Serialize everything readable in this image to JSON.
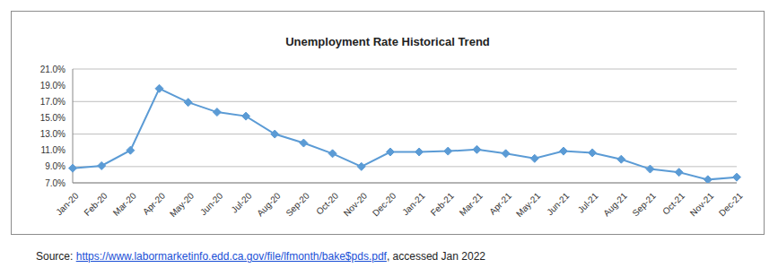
{
  "chart_data": {
    "type": "line",
    "title": "Unemployment Rate Historical Trend",
    "categories": [
      "Jan-20",
      "Feb-20",
      "Mar-20",
      "Apr-20",
      "May-20",
      "Jun-20",
      "Jul-20",
      "Aug-20",
      "Sep-20",
      "Oct-20",
      "Nov-20",
      "Dec-20",
      "Jan-21",
      "Feb-21",
      "Mar-21",
      "Apr-21",
      "May-21",
      "Jun-21",
      "Jul-21",
      "Aug-21",
      "Sep-21",
      "Oct-21",
      "Nov-21",
      "Dec-21"
    ],
    "values": [
      8.8,
      9.1,
      11.0,
      18.6,
      16.9,
      15.7,
      15.2,
      13.0,
      11.9,
      10.6,
      9.0,
      10.8,
      10.8,
      10.9,
      11.1,
      10.6,
      10.0,
      10.9,
      10.7,
      9.9,
      8.7,
      8.3,
      7.4,
      7.7
    ],
    "color": "#5b9bd5",
    "marker": "diamond",
    "ylim": [
      7,
      21
    ],
    "yticks": [
      {
        "value": 7,
        "label": "7.0%"
      },
      {
        "value": 9,
        "label": "9.0%"
      },
      {
        "value": 11,
        "label": "11.0%"
      },
      {
        "value": 13,
        "label": "13.0%"
      },
      {
        "value": 15,
        "label": "15.0%"
      },
      {
        "value": 17,
        "label": "17.0%"
      },
      {
        "value": 19,
        "label": "19.0%"
      },
      {
        "value": 21,
        "label": "21.0%"
      }
    ],
    "grid": true,
    "source": "Source: https://www.labormarketinfo.edd.ca.gov/file/lfmonth/bake$pds.pdf, accessed Jan 2022"
  }
}
